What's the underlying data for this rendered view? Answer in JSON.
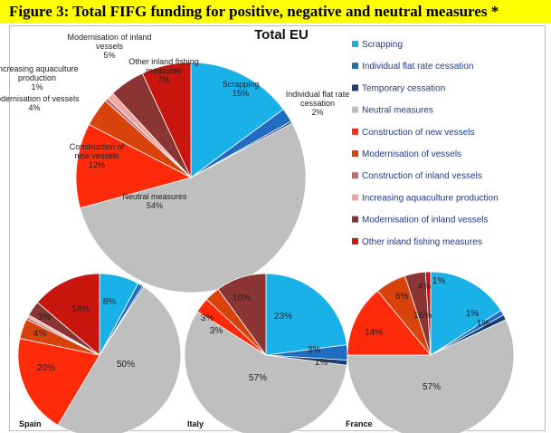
{
  "figure_title": "Figure 3: Total FIFG funding for positive, negative and neutral measures *",
  "colors": {
    "Scrapping": "#1ab0e8",
    "Individual flat rate cessation": "#1f6cc0",
    "Temporary cessation": "#1b3f73",
    "Neutral measures": "#bfbfbf",
    "Construction of new vessels": "#ff2a0a",
    "Modernisation of vessels": "#d8430c",
    "Construction of inland vessels": "#c46a6a",
    "Increasing aquaculture production": "#f0a6a0",
    "Modernisation of inland vessels": "#8b3434",
    "Other inland fishing measures": "#c8160f"
  },
  "chart_data": [
    {
      "type": "pie",
      "title": "Total EU",
      "slices": [
        {
          "category": "Scrapping",
          "value": 15,
          "label": "Scrapping\n15%"
        },
        {
          "category": "Individual flat rate cessation",
          "value": 2,
          "label": "Individual flat rate\ncessation\n2%"
        },
        {
          "category": "Temporary cessation",
          "value": 0.3,
          "label": ""
        },
        {
          "category": "Neutral measures",
          "value": 54,
          "label": "Neutral measures\n54%"
        },
        {
          "category": "Construction of new vessels",
          "value": 12,
          "label": "Construction of\nnew vessels\n12%"
        },
        {
          "category": "Modernisation of vessels",
          "value": 4,
          "label": "Modernisation of vessels\n4%"
        },
        {
          "category": "Construction of inland vessels",
          "value": 0.5,
          "label": ""
        },
        {
          "category": "Increasing aquaculture production",
          "value": 1,
          "label": "Increasing aquaculture\nproduction\n1%"
        },
        {
          "category": "Modernisation of inland vessels",
          "value": 5,
          "label": "Modernisation of inland\nvessels\n5%"
        },
        {
          "category": "Other inland fishing measures",
          "value": 7,
          "label": "Other inland fishing\nmeasures\n7%"
        }
      ],
      "legend": {
        "placement": "right",
        "entries": [
          "Scrapping",
          "Individual flat rate cessation",
          "Temporary cessation",
          "Neutral measures",
          "Construction of new vessels",
          "Modernisation of vessels",
          "Construction of inland vessels",
          "Increasing aquaculture production",
          "Modernisation of inland vessels",
          "Other inland fishing measures"
        ]
      }
    },
    {
      "type": "pie",
      "title": "Spain",
      "slices": [
        {
          "category": "Scrapping",
          "value": 8,
          "label": "8%"
        },
        {
          "category": "Individual flat rate cessation",
          "value": 1,
          "label": ""
        },
        {
          "category": "Temporary cessation",
          "value": 0.3,
          "label": ""
        },
        {
          "category": "Neutral measures",
          "value": 50,
          "label": "50%"
        },
        {
          "category": "Construction of new vessels",
          "value": 20,
          "label": "20%"
        },
        {
          "category": "Modernisation of vessels",
          "value": 4,
          "label": "4%"
        },
        {
          "category": "Construction of inland vessels",
          "value": 0.5,
          "label": ""
        },
        {
          "category": "Increasing aquaculture production",
          "value": 0.5,
          "label": ""
        },
        {
          "category": "Modernisation of inland vessels",
          "value": 3,
          "label": "3%"
        },
        {
          "category": "Other inland fishing measures",
          "value": 14,
          "label": "14%"
        }
      ]
    },
    {
      "type": "pie",
      "title": "Italy",
      "slices": [
        {
          "category": "Scrapping",
          "value": 23,
          "label": "23%"
        },
        {
          "category": "Individual flat rate cessation",
          "value": 3,
          "label": "3%"
        },
        {
          "category": "Temporary cessation",
          "value": 1,
          "label": "1%"
        },
        {
          "category": "Neutral measures",
          "value": 57,
          "label": "57%"
        },
        {
          "category": "Construction of new vessels",
          "value": 3,
          "label": "3%"
        },
        {
          "category": "Modernisation of vessels",
          "value": 3,
          "label": "3%"
        },
        {
          "category": "Construction of inland vessels",
          "value": 0,
          "label": ""
        },
        {
          "category": "Increasing aquaculture production",
          "value": 0,
          "label": ""
        },
        {
          "category": "Modernisation of inland vessels",
          "value": 10,
          "label": "10%"
        },
        {
          "category": "Other inland fishing measures",
          "value": 0,
          "label": ""
        }
      ]
    },
    {
      "type": "pie",
      "title": "France",
      "slices": [
        {
          "category": "Scrapping",
          "value": 16,
          "label": "16%"
        },
        {
          "category": "Individual flat rate cessation",
          "value": 1,
          "label": "1%"
        },
        {
          "category": "Temporary cessation",
          "value": 1,
          "label": "1%"
        },
        {
          "category": "Neutral measures",
          "value": 57,
          "label": "57%"
        },
        {
          "category": "Construction of new vessels",
          "value": 14,
          "label": "14%"
        },
        {
          "category": "Modernisation of vessels",
          "value": 6,
          "label": "6%"
        },
        {
          "category": "Construction of inland vessels",
          "value": 0,
          "label": ""
        },
        {
          "category": "Increasing aquaculture production",
          "value": 0,
          "label": ""
        },
        {
          "category": "Modernisation of inland vessels",
          "value": 4,
          "label": "4%"
        },
        {
          "category": "Other inland fishing measures",
          "value": 1,
          "label": "1%"
        }
      ]
    }
  ]
}
